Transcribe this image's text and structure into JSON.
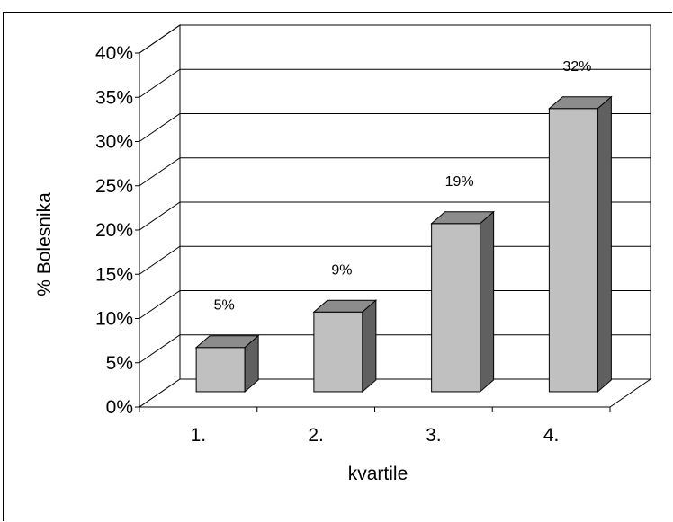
{
  "chart_data": {
    "type": "bar",
    "categories": [
      "1.",
      "2.",
      "3.",
      "4."
    ],
    "values": [
      5,
      9,
      19,
      32
    ],
    "data_labels": [
      "5%",
      "9%",
      "19%",
      "32%"
    ],
    "ylabel": "% Bolesnika",
    "xlabel": "kvartile",
    "ylim": [
      0,
      40
    ],
    "y_ticks": [
      "0%",
      "5%",
      "10%",
      "15%",
      "20%",
      "25%",
      "30%",
      "35%",
      "40%"
    ],
    "grid": true,
    "three_d": true,
    "colors": {
      "bar_front": "#c0c0c0",
      "bar_top": "#8c8c8c",
      "bar_side": "#606060",
      "grid": "#000000"
    }
  }
}
